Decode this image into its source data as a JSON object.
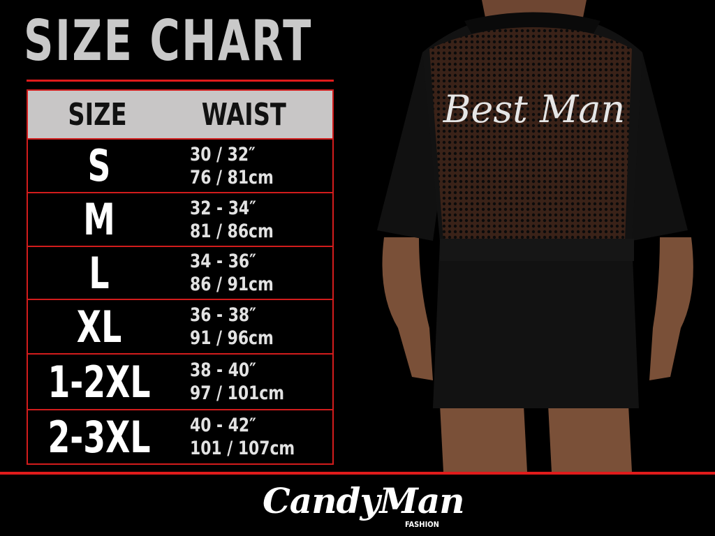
{
  "title": "SIZE CHART",
  "table": {
    "headers": {
      "size": "SIZE",
      "waist": "WAIST"
    },
    "rows": [
      {
        "size": "S",
        "inches": "30 / 32″",
        "cm": "76 / 81cm"
      },
      {
        "size": "M",
        "inches": "32 - 34″",
        "cm": "81 / 86cm"
      },
      {
        "size": "L",
        "inches": "34 - 36″",
        "cm": "86 / 91cm"
      },
      {
        "size": "XL",
        "inches": "36 - 38″",
        "cm": "91 / 96cm"
      },
      {
        "size": "1-2XL",
        "inches": "38 - 40″",
        "cm": "97 / 101cm"
      },
      {
        "size": "2-3XL",
        "inches": "40 - 42″",
        "cm": "101 / 107cm"
      }
    ]
  },
  "photo": {
    "garment_text": "Best Man"
  },
  "brand": {
    "name": "CandyMan",
    "sub": "FASHION"
  },
  "colors": {
    "accent": "#e01b1b",
    "header_bg": "#c8c6c6",
    "background": "#000000"
  }
}
